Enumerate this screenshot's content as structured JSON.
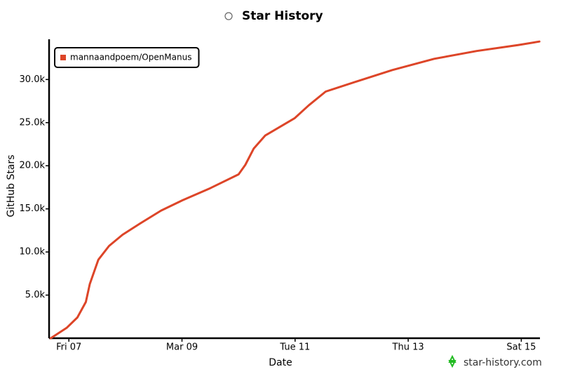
{
  "chart_data": {
    "type": "line",
    "title": "Star History",
    "x_label": "Date",
    "y_label": "GitHub Stars",
    "watermark": "star-history.com",
    "legend": "top-left",
    "grid": false,
    "xlim": [
      6.65,
      15.33
    ],
    "xticks": [
      {
        "value": 7,
        "label": "Fri 07"
      },
      {
        "value": 9,
        "label": "Mar 09"
      },
      {
        "value": 11,
        "label": "Tue 11"
      },
      {
        "value": 13,
        "label": "Thu 13"
      },
      {
        "value": 15,
        "label": "Sat 15"
      }
    ],
    "ylim": [
      0,
      34500
    ],
    "yticks": [
      {
        "value": 5000,
        "label": "5.0k"
      },
      {
        "value": 10000,
        "label": "10.0k"
      },
      {
        "value": 15000,
        "label": "15.0k"
      },
      {
        "value": 20000,
        "label": "20.0k"
      },
      {
        "value": 25000,
        "label": "25.0k"
      },
      {
        "value": 30000,
        "label": "30.0k"
      }
    ],
    "x": [
      6.68,
      6.96,
      7.15,
      7.3,
      7.37,
      7.52,
      7.71,
      7.95,
      8.26,
      8.63,
      9.01,
      9.5,
      10.0,
      10.12,
      10.27,
      10.47,
      10.99,
      11.24,
      11.54,
      12.1,
      12.72,
      13.46,
      14.21,
      14.95,
      15.32
    ],
    "series": [
      {
        "name": "mannaandpoem/OpenManus",
        "color": "#dd4528",
        "values": [
          0,
          1200,
          2400,
          4200,
          6300,
          9100,
          10700,
          12000,
          13300,
          14800,
          16000,
          17400,
          19000,
          20100,
          22000,
          23500,
          25500,
          27000,
          28600,
          29800,
          31100,
          32400,
          33300,
          34000,
          34400
        ]
      }
    ]
  }
}
